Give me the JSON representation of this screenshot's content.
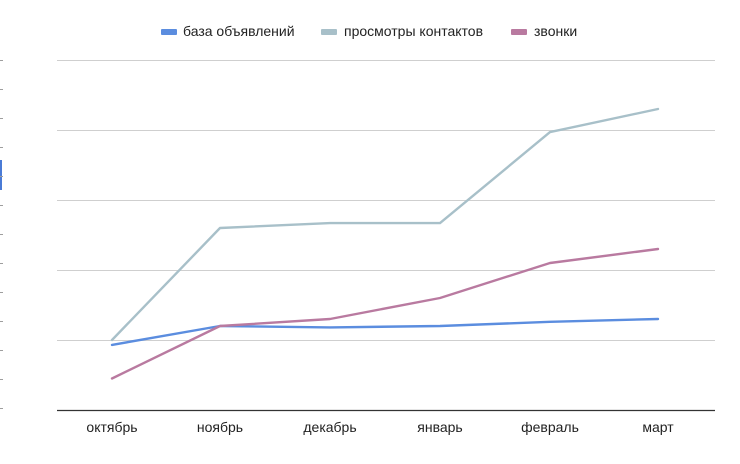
{
  "chart_data": {
    "type": "line",
    "categories": [
      "октябрь",
      "ноябрь",
      "декабрь",
      "январь",
      "февраль",
      "март"
    ],
    "series": [
      {
        "name": "база объявлений",
        "color": "#5b8ddf",
        "values": [
          0.93,
          1.2,
          1.18,
          1.2,
          1.26,
          1.3
        ]
      },
      {
        "name": "просмотры контактов",
        "color": "#a8c0c9",
        "values": [
          1.0,
          2.6,
          2.67,
          2.67,
          3.97,
          4.3
        ]
      },
      {
        "name": "звонки",
        "color": "#b97aa0",
        "values": [
          0.45,
          1.2,
          1.3,
          1.6,
          2.1,
          2.3
        ]
      }
    ],
    "ylim": [
      0,
      5
    ],
    "grid": true,
    "legend_position": "top",
    "title": "",
    "xlabel": "",
    "ylabel": ""
  }
}
